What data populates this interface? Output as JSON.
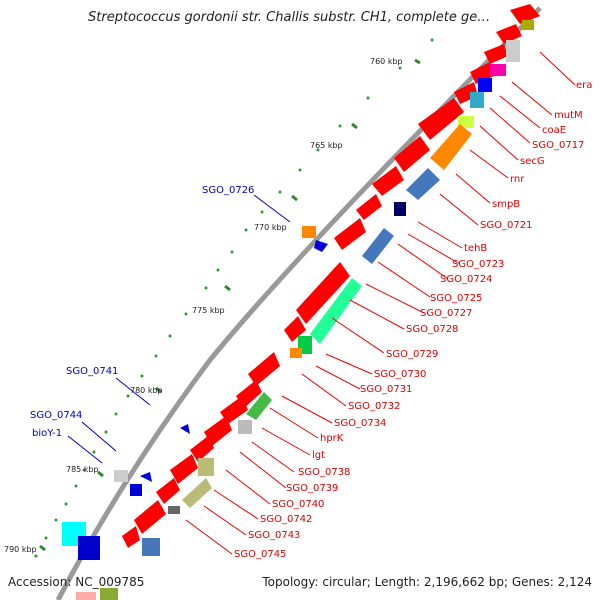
{
  "title": "Streptococcus gordonii str. Challis substr. CH1, complete ge…",
  "footer": {
    "accession": "Accession: NC_009785",
    "summary": "Topology: circular; Length: 2,196,662 bp; Genes: 2,124"
  },
  "ticks": [
    "760 kbp",
    "765 kbp",
    "770 kbp",
    "775 kbp",
    "780 kbp",
    "785 kbp",
    "790 kbp"
  ],
  "labels_right": [
    "era",
    "mutM",
    "coaE",
    "SGO_0717",
    "secG",
    "rnr",
    "smpB",
    "SGO_0721",
    "tehB",
    "SGO_0723",
    "SGO_0724",
    "SGO_0725",
    "SGO_0727",
    "SGO_0728",
    "SGO_0729",
    "SGO_0730",
    "SGO_0731",
    "SGO_0732",
    "SGO_0734",
    "hprK",
    "lgt",
    "SGO_0738",
    "SGO_0739",
    "SGO_0740",
    "SGO_0742",
    "SGO_0743",
    "SGO_0745"
  ],
  "labels_left": [
    "SGO_0726",
    "SGO_0741",
    "SGO_0744",
    "bioY-1"
  ],
  "colors": {
    "cds": "#ff0000",
    "label_red": "#dd0000",
    "label_blue": "#0000cc",
    "backbone": "#888888"
  }
}
